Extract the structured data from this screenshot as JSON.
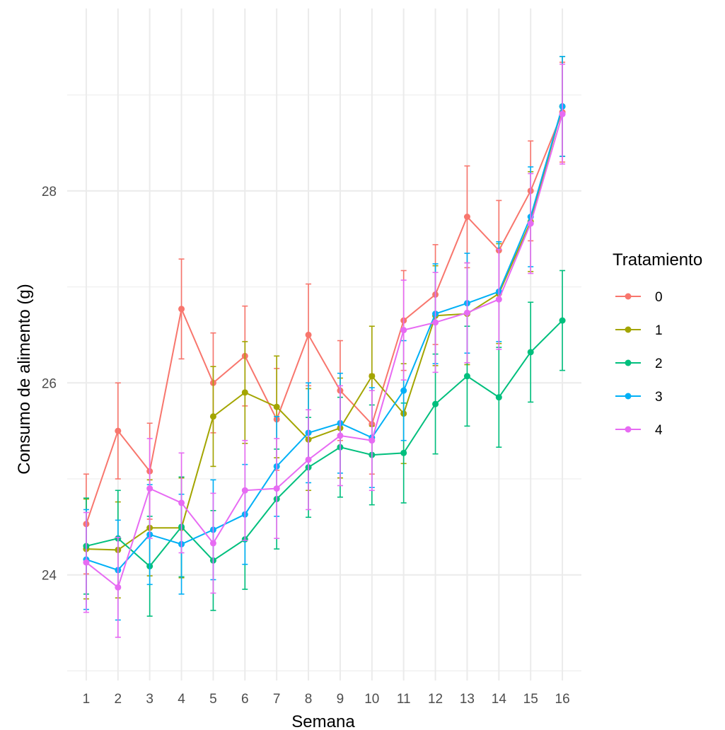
{
  "chart_data": {
    "type": "line",
    "title": "",
    "xlabel": "Semana",
    "ylabel": "Consumo de alimento (g)",
    "x": [
      1,
      2,
      3,
      4,
      5,
      6,
      7,
      8,
      9,
      10,
      11,
      12,
      13,
      14,
      15,
      16
    ],
    "x_tick_labels": [
      "1",
      "2",
      "3",
      "4",
      "5",
      "6",
      "7",
      "8",
      "9",
      "10",
      "11",
      "12",
      "13",
      "14",
      "15",
      "16"
    ],
    "y_ticks": [
      24,
      26,
      28
    ],
    "y_tick_labels": [
      "24",
      "26",
      "28"
    ],
    "ylim": [
      22.9,
      29.9
    ],
    "grid": true,
    "legend_position": "right",
    "legend_title": "Tratamiento",
    "error_bars": true,
    "series": [
      {
        "name": "0",
        "color": "#F8766D",
        "values": [
          24.53,
          25.5,
          25.08,
          26.77,
          26.0,
          26.28,
          25.62,
          26.5,
          25.92,
          25.57,
          26.65,
          26.92,
          27.73,
          27.38,
          28.0,
          28.82
        ],
        "error": [
          0.52,
          0.5,
          0.5,
          0.52,
          0.52,
          0.52,
          0.53,
          0.53,
          0.52,
          0.52,
          0.52,
          0.52,
          0.53,
          0.52,
          0.52,
          0.52
        ]
      },
      {
        "name": "1",
        "color": "#A3A500",
        "values": [
          24.27,
          24.26,
          24.49,
          24.49,
          25.65,
          25.9,
          25.75,
          25.41,
          25.53,
          26.07,
          25.68,
          26.7,
          26.72,
          26.93,
          27.68,
          28.88
        ],
        "error": [
          0.52,
          0.5,
          0.5,
          0.52,
          0.52,
          0.53,
          0.53,
          0.53,
          0.52,
          0.52,
          0.52,
          0.52,
          0.53,
          0.52,
          0.52,
          0.52
        ]
      },
      {
        "name": "2",
        "color": "#00BF7D",
        "values": [
          24.3,
          24.38,
          24.09,
          24.5,
          24.15,
          24.37,
          24.79,
          25.12,
          25.33,
          25.25,
          25.27,
          25.78,
          26.07,
          25.85,
          26.32,
          26.65
        ],
        "error": [
          0.5,
          0.5,
          0.52,
          0.52,
          0.52,
          0.52,
          0.52,
          0.52,
          0.52,
          0.52,
          0.52,
          0.52,
          0.52,
          0.52,
          0.52,
          0.52
        ]
      },
      {
        "name": "3",
        "color": "#00B0F6",
        "values": [
          24.16,
          24.05,
          24.42,
          24.32,
          24.47,
          24.63,
          25.13,
          25.48,
          25.58,
          25.43,
          25.92,
          26.72,
          26.83,
          26.95,
          27.73,
          28.88
        ],
        "error": [
          0.52,
          0.52,
          0.52,
          0.52,
          0.52,
          0.52,
          0.52,
          0.52,
          0.52,
          0.52,
          0.52,
          0.52,
          0.52,
          0.52,
          0.52,
          0.52
        ]
      },
      {
        "name": "4",
        "color": "#E76BF3",
        "values": [
          24.13,
          23.87,
          24.9,
          24.75,
          24.33,
          24.88,
          24.9,
          25.2,
          25.45,
          25.4,
          26.55,
          26.63,
          26.73,
          26.87,
          27.66,
          28.8
        ],
        "error": [
          0.52,
          0.52,
          0.52,
          0.52,
          0.52,
          0.52,
          0.52,
          0.52,
          0.52,
          0.52,
          0.52,
          0.52,
          0.52,
          0.52,
          0.52,
          0.52
        ]
      }
    ]
  }
}
